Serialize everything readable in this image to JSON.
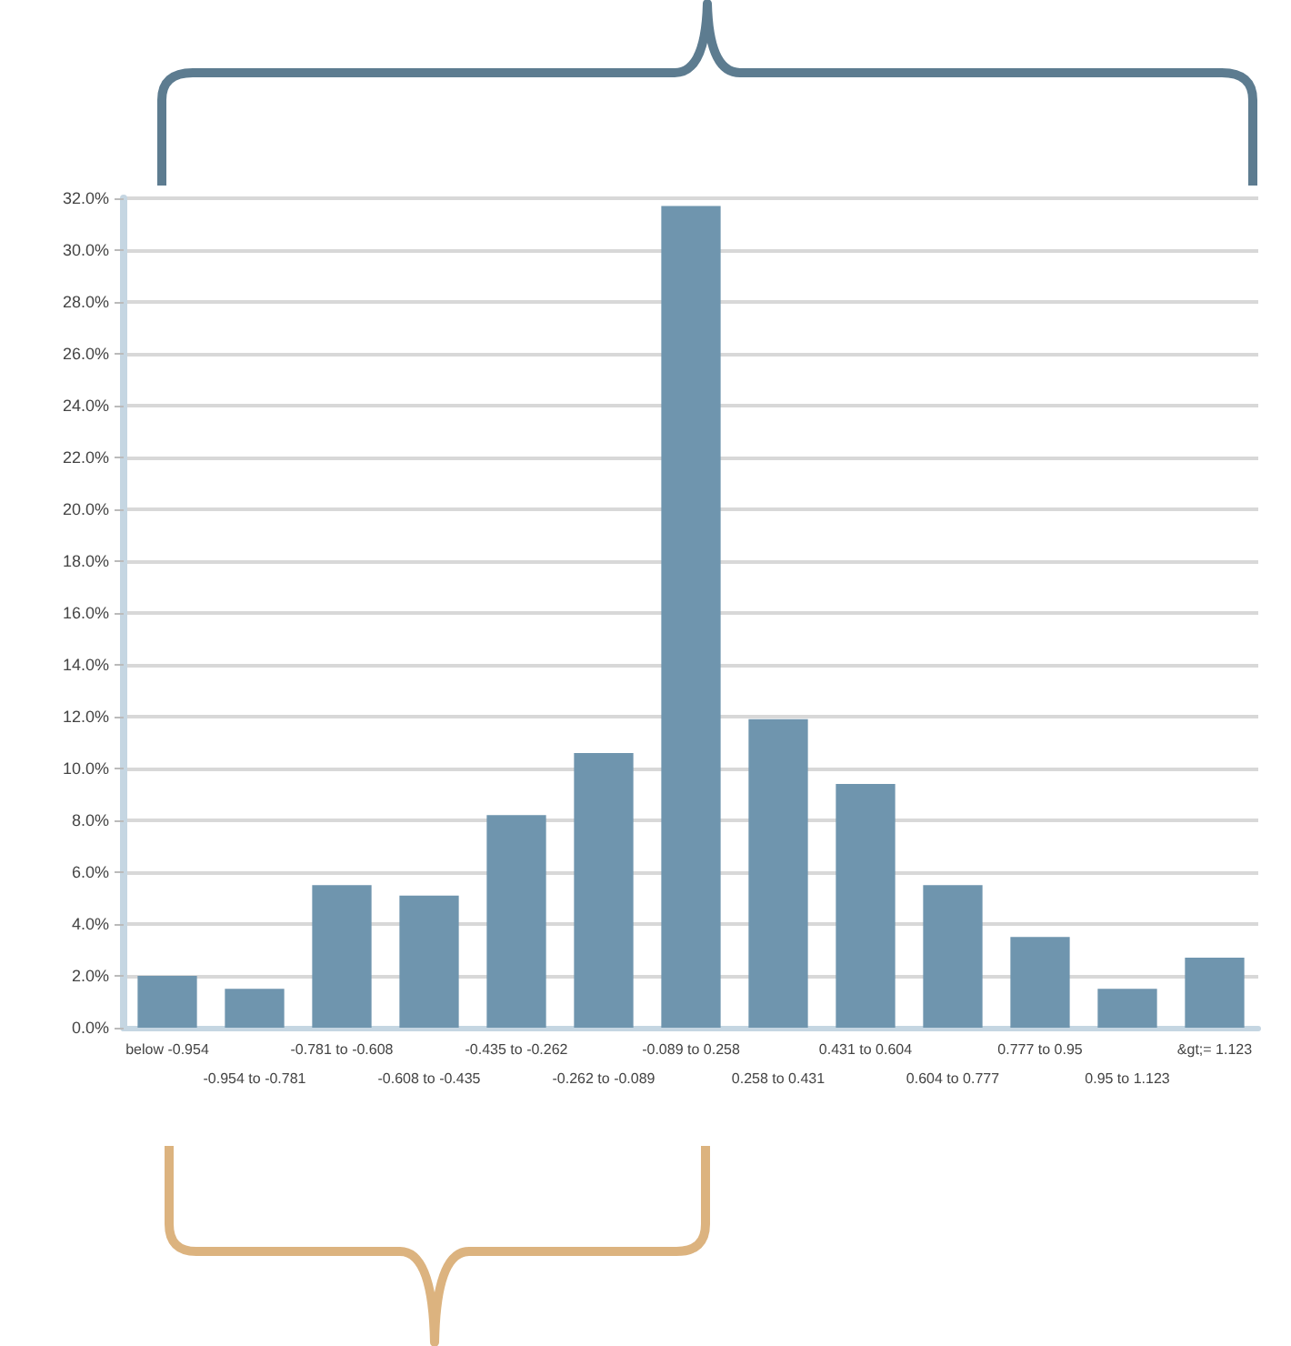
{
  "chart_data": {
    "type": "bar",
    "categories": [
      "below -0.954",
      "-0.954 to -0.781",
      "-0.781 to -0.608",
      "-0.608 to -0.435",
      "-0.435 to -0.262",
      "-0.262 to -0.089",
      "-0.089 to 0.258",
      "0.258 to 0.431",
      "0.431 to 0.604",
      "0.604 to 0.777",
      "0.777 to 0.95",
      "0.95 to 1.123",
      "&gt;= 1.123"
    ],
    "values": [
      2.0,
      1.5,
      5.5,
      5.1,
      8.2,
      10.6,
      31.7,
      11.9,
      9.4,
      5.5,
      3.5,
      1.5,
      2.7
    ],
    "color": "#6f95ae",
    "ylim": [
      0,
      32
    ],
    "yticks": [
      {
        "value": 0,
        "label": "0.0%"
      },
      {
        "value": 2,
        "label": "2.0%"
      },
      {
        "value": 4,
        "label": "4.0%"
      },
      {
        "value": 6,
        "label": "6.0%"
      },
      {
        "value": 8,
        "label": "8.0%"
      },
      {
        "value": 10,
        "label": "10.0%"
      },
      {
        "value": 12,
        "label": "12.0%"
      },
      {
        "value": 14,
        "label": "14.0%"
      },
      {
        "value": 16,
        "label": "16.0%"
      },
      {
        "value": 18,
        "label": "18.0%"
      },
      {
        "value": 20,
        "label": "20.0%"
      },
      {
        "value": 22,
        "label": "22.0%"
      },
      {
        "value": 24,
        "label": "24.0%"
      },
      {
        "value": 26,
        "label": "26.0%"
      },
      {
        "value": 28,
        "label": "28.0%"
      },
      {
        "value": 30,
        "label": "30.0%"
      },
      {
        "value": 32,
        "label": "32.0%"
      }
    ],
    "grid": "y"
  }
}
